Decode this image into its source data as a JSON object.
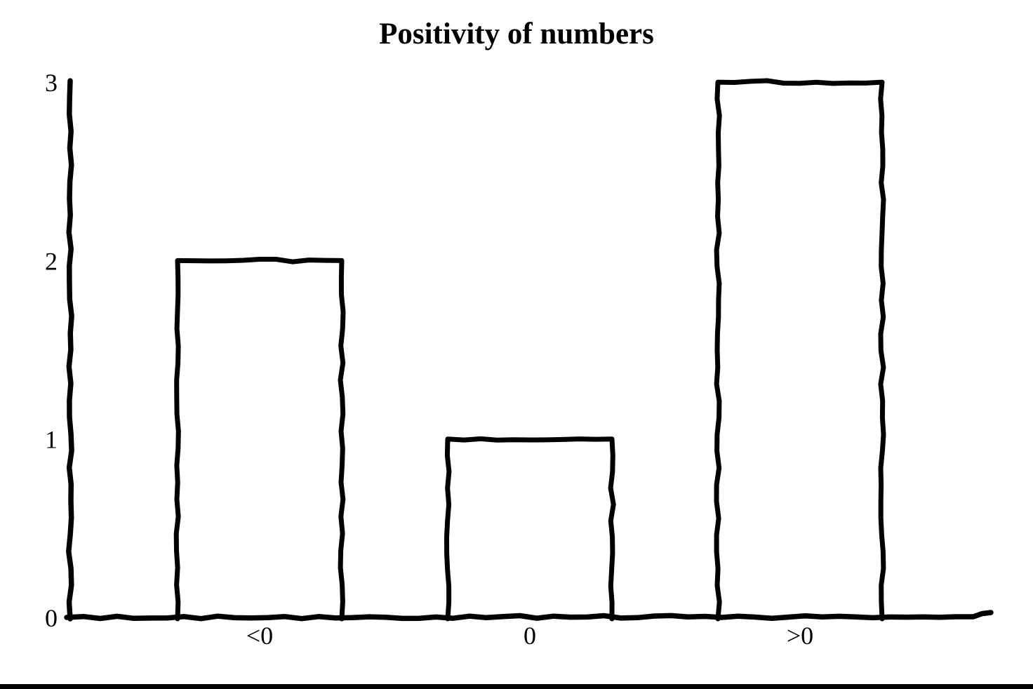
{
  "page": {
    "background": "#ffffff"
  },
  "chart_data": {
    "type": "bar",
    "title": "Positivity of numbers",
    "categories": [
      "<0",
      "0",
      ">0"
    ],
    "values": [
      2,
      1,
      3
    ],
    "xlabel": "",
    "ylabel": "",
    "ylim": [
      0,
      3
    ],
    "yticks": [
      "0",
      "1",
      "2",
      "3"
    ],
    "grid": false,
    "legend": false,
    "bar_fill": "#ffffff",
    "line_color": "#000000",
    "text_color": "#000000",
    "style_note": "hand-drawn sketch style: white-filled bars with wobbly black outlines, no gridlines, no tick marks"
  }
}
